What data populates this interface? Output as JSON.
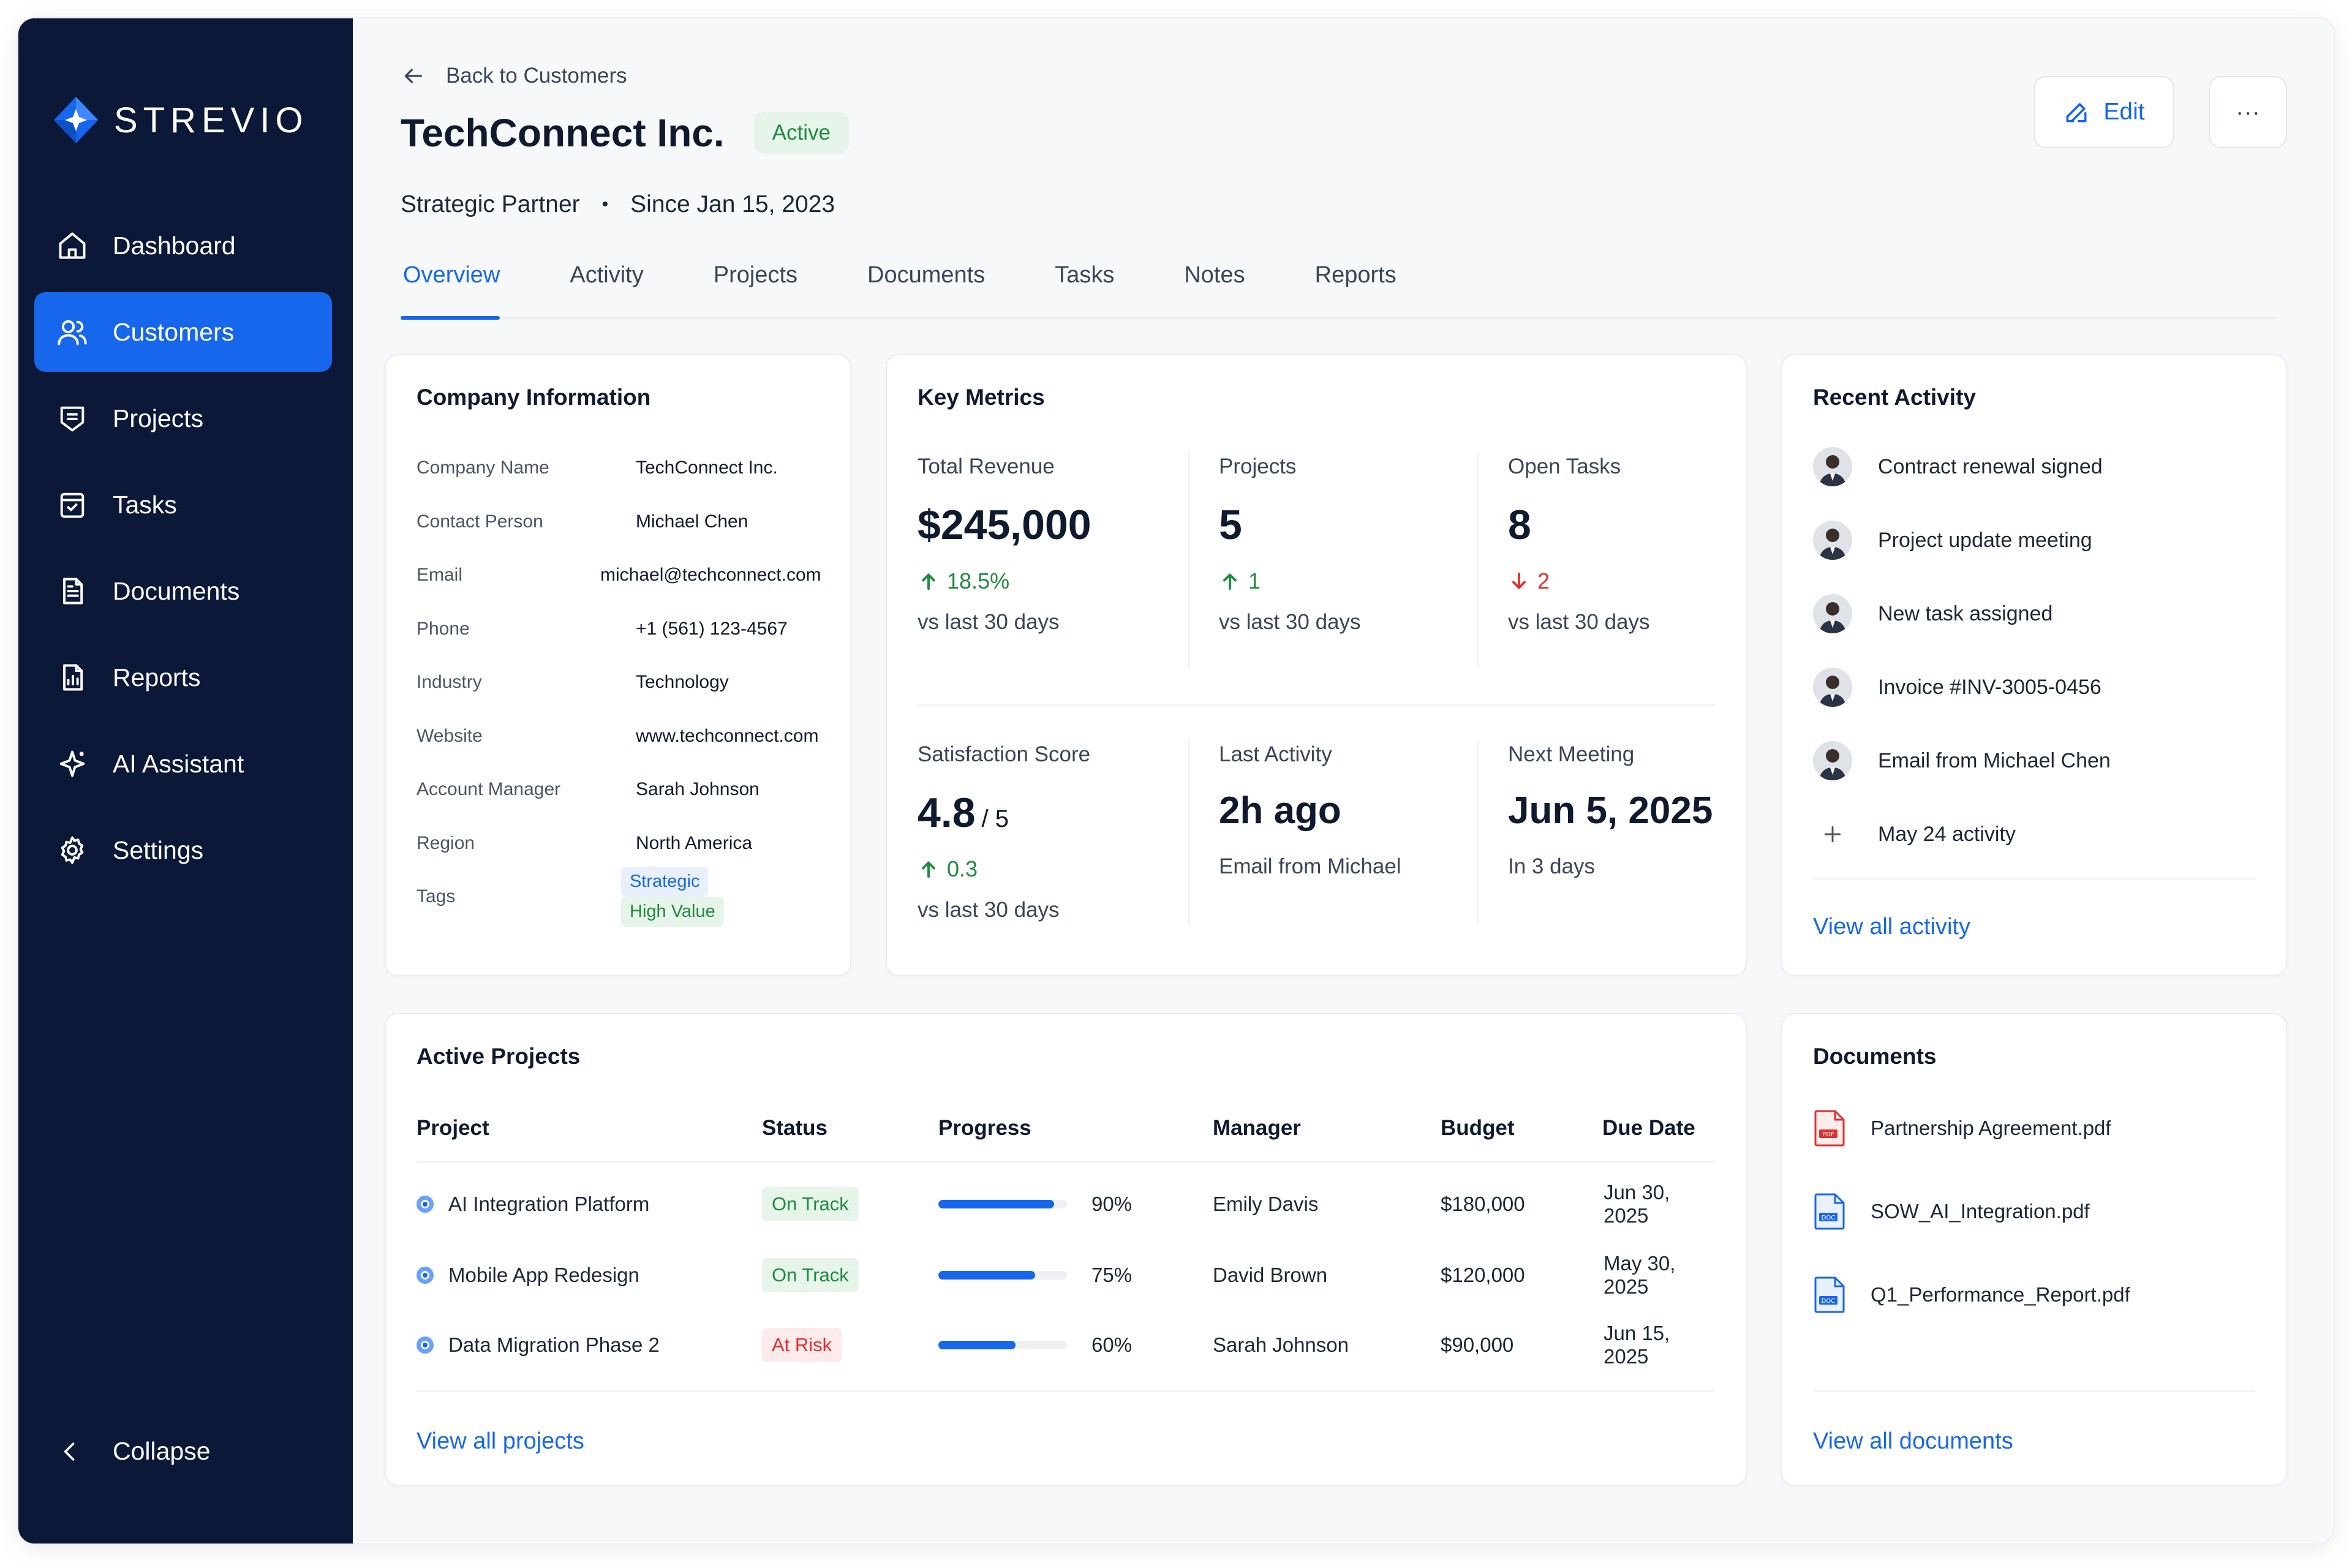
{
  "app": {
    "brand": "STREVIO"
  },
  "sidebar": {
    "items": [
      {
        "label": "Dashboard",
        "icon": "home-icon"
      },
      {
        "label": "Customers",
        "icon": "users-icon"
      },
      {
        "label": "Projects",
        "icon": "briefcase-icon"
      },
      {
        "label": "Tasks",
        "icon": "clipboard-icon"
      },
      {
        "label": "Documents",
        "icon": "document-icon"
      },
      {
        "label": "Reports",
        "icon": "report-icon"
      },
      {
        "label": "AI Assistant",
        "icon": "sparkle-icon"
      },
      {
        "label": "Settings",
        "icon": "gear-icon"
      }
    ],
    "active_index": 1,
    "collapse_label": "Collapse"
  },
  "header": {
    "back_label": "Back to Customers",
    "title": "TechConnect Inc.",
    "status": "Active",
    "tier": "Strategic Partner",
    "separator": "•",
    "since": "Since Jan 15, 2023",
    "edit_label": "Edit",
    "more_label": "···"
  },
  "tabs": [
    "Overview",
    "Activity",
    "Projects",
    "Documents",
    "Tasks",
    "Notes",
    "Reports"
  ],
  "company_info": {
    "title": "Company Information",
    "rows": [
      {
        "label": "Company Name",
        "value": "TechConnect Inc."
      },
      {
        "label": "Contact Person",
        "value": "Michael Chen"
      },
      {
        "label": "Email",
        "value": "michael@techconnect.com"
      },
      {
        "label": "Phone",
        "value": "+1 (561) 123-4567"
      },
      {
        "label": "Industry",
        "value": "Technology"
      },
      {
        "label": "Website",
        "value": "www.techconnect.com"
      },
      {
        "label": "Account Manager",
        "value": "Sarah Johnson"
      },
      {
        "label": "Region",
        "value": "North America"
      }
    ],
    "tags_label": "Tags",
    "tags": [
      "Strategic",
      "High Value"
    ]
  },
  "key_metrics": {
    "title": "Key Metrics",
    "total_revenue": {
      "label": "Total Revenue",
      "value": "$245,000",
      "delta": "18.5%",
      "sub": "vs last 30 days"
    },
    "projects": {
      "label": "Projects",
      "value": "5",
      "delta": "1",
      "sub": "vs last 30 days"
    },
    "open_tasks": {
      "label": "Open Tasks",
      "value": "8",
      "delta": "2",
      "sub": "vs last 30 days"
    },
    "satisfaction": {
      "label": "Satisfaction Score",
      "value": "4.8",
      "scale": "/ 5",
      "delta": "0.3",
      "sub": "vs last 30 days"
    },
    "last_activity": {
      "label": "Last Activity",
      "value": "2h ago",
      "sub": "Email from Michael"
    },
    "next_meeting": {
      "label": "Next Meeting",
      "value": "Jun 5, 2025",
      "sub": "In 3 days"
    }
  },
  "recent_activity": {
    "title": "Recent Activity",
    "items": [
      "Contract renewal signed",
      "Project update meeting",
      "New task assigned",
      "Invoice #INV-3005-0456",
      "Email from Michael Chen"
    ],
    "more_item": "May 24 activity",
    "view_all": "View all activity"
  },
  "active_projects": {
    "title": "Active Projects",
    "columns": [
      "Project",
      "Status",
      "Progress",
      "Manager",
      "Budget",
      "Due Date"
    ],
    "rows": [
      {
        "name": "AI Integration Platform",
        "status": "On Track",
        "status_kind": "ok",
        "progress": 90,
        "progress_label": "90%",
        "manager": "Emily Davis",
        "budget": "$180,000",
        "due": "Jun 30, 2025"
      },
      {
        "name": "Mobile App Redesign",
        "status": "On Track",
        "status_kind": "ok",
        "progress": 75,
        "progress_label": "75%",
        "manager": "David Brown",
        "budget": "$120,000",
        "due": "May 30, 2025"
      },
      {
        "name": "Data Migration Phase 2",
        "status": "At Risk",
        "status_kind": "risk",
        "progress": 60,
        "progress_label": "60%",
        "manager": "Sarah Johnson",
        "budget": "$90,000",
        "due": "Jun 15, 2025"
      }
    ],
    "view_all": "View all projects"
  },
  "documents": {
    "title": "Documents",
    "items": [
      {
        "name": "Partnership Agreement.pdf",
        "type": "pdf"
      },
      {
        "name": "SOW_AI_Integration.pdf",
        "type": "doc"
      },
      {
        "name": "Q1_Performance_Report.pdf",
        "type": "doc"
      }
    ],
    "view_all": "View all documents"
  },
  "colors": {
    "sidebar_bg": "#0b1838",
    "accent": "#1767ec",
    "positive": "#1f8a3e",
    "negative": "#e03131"
  }
}
